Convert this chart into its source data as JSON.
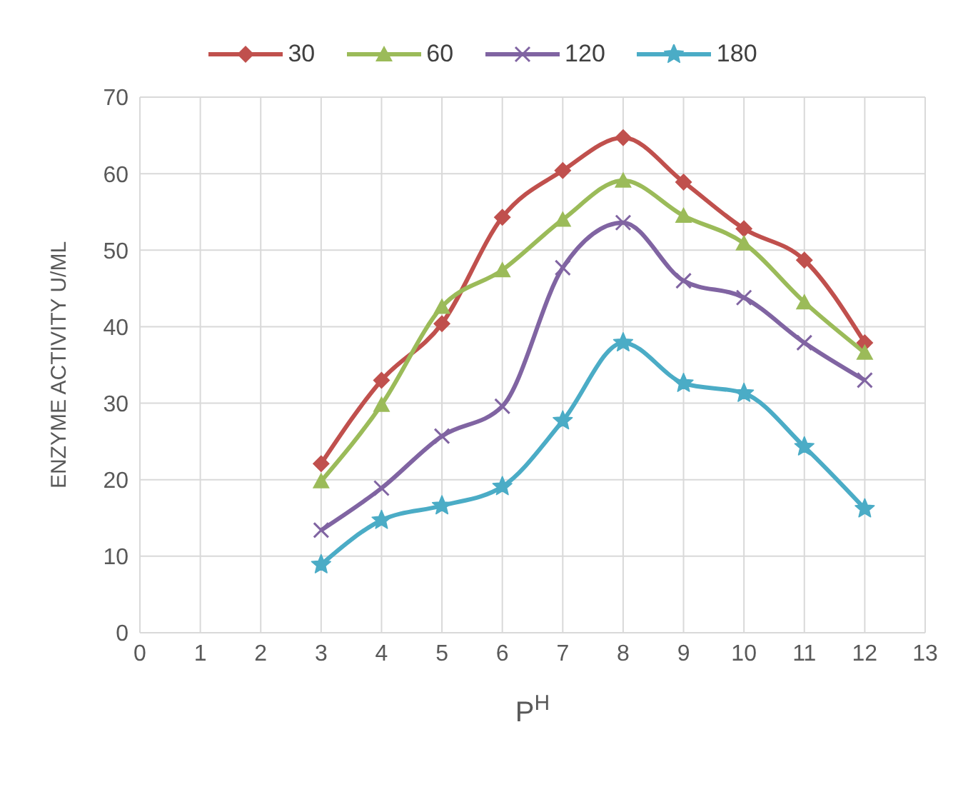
{
  "chart_data": {
    "type": "line",
    "xlabel": "P$^{H}$",
    "ylabel": "ENZYME  ACTIVITY U/ML",
    "x": [
      3,
      4,
      5,
      6,
      7,
      8,
      9,
      10,
      11,
      12
    ],
    "series": [
      {
        "name": "30",
        "color": "#c0504d",
        "marker": "diamond",
        "values": [
          22.1,
          33,
          40.4,
          54.3,
          60.4,
          64.7,
          58.9,
          52.8,
          48.7,
          37.9
        ]
      },
      {
        "name": "60",
        "color": "#9bbb59",
        "marker": "triangle",
        "values": [
          19.8,
          29.8,
          42.6,
          47.4,
          54,
          59.1,
          54.5,
          50.9,
          43.2,
          36.6
        ]
      },
      {
        "name": "120",
        "color": "#8064a2",
        "marker": "cross",
        "values": [
          13.4,
          18.9,
          25.7,
          29.6,
          47.7,
          53.6,
          46,
          43.8,
          37.9,
          33
        ]
      },
      {
        "name": "180",
        "color": "#4bacc6",
        "marker": "star",
        "values": [
          8.9,
          14.7,
          16.6,
          19.1,
          27.7,
          37.9,
          32.6,
          31.3,
          24.3,
          16.2
        ]
      }
    ],
    "xlim": [
      0,
      13
    ],
    "xticks": [
      0,
      1,
      2,
      3,
      4,
      5,
      6,
      7,
      8,
      9,
      10,
      11,
      12,
      13
    ],
    "ylim": [
      0,
      70
    ],
    "yticks": [
      0,
      10,
      20,
      30,
      40,
      50,
      60,
      70
    ],
    "grid": true,
    "legend": "top",
    "line_style": "solid"
  }
}
